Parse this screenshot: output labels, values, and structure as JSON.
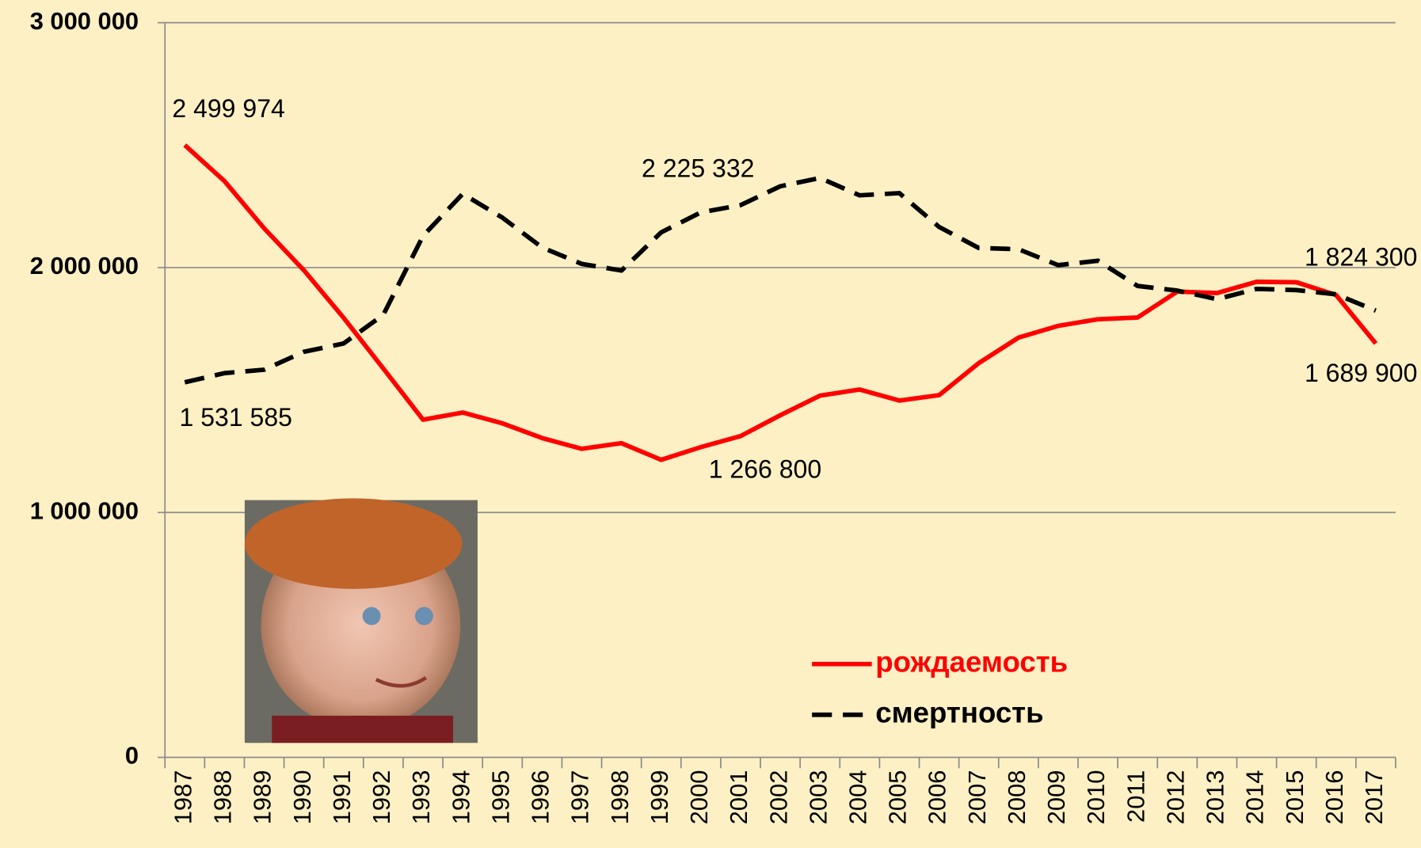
{
  "chart_data": {
    "type": "line",
    "categories": [
      "1987",
      "1988",
      "1989",
      "1990",
      "1991",
      "1992",
      "1993",
      "1994",
      "1995",
      "1996",
      "1997",
      "1998",
      "1999",
      "2000",
      "2001",
      "2002",
      "2003",
      "2004",
      "2005",
      "2006",
      "2007",
      "2008",
      "2009",
      "2010",
      "2011",
      "2012",
      "2013",
      "2014",
      "2015",
      "2016",
      "2017"
    ],
    "series": [
      {
        "name": "рождаемость",
        "color": "#ff0000",
        "dash": false,
        "values": [
          2499974,
          2353000,
          2160000,
          1989000,
          1795000,
          1588000,
          1379000,
          1408000,
          1364000,
          1304000,
          1260000,
          1283000,
          1215000,
          1267000,
          1312000,
          1397000,
          1477000,
          1502000,
          1457000,
          1479000,
          1610000,
          1714000,
          1762000,
          1789000,
          1796000,
          1902000,
          1896000,
          1942000,
          1940000,
          1888000,
          1689900
        ]
      },
      {
        "name": "смертность",
        "color": "#000000",
        "dash": true,
        "values": [
          1531585,
          1569000,
          1583000,
          1656000,
          1690000,
          1807000,
          2129000,
          2301000,
          2204000,
          2082000,
          2015000,
          1988000,
          2144000,
          2225332,
          2255000,
          2332000,
          2366000,
          2295000,
          2304000,
          2166000,
          2080000,
          2075000,
          2010000,
          2028000,
          1925000,
          1906000,
          1871000,
          1913000,
          1908000,
          1891000,
          1824300
        ]
      }
    ],
    "annotations": [
      "2 499 974",
      "1 531 585",
      "2 225 332",
      "1 266 800",
      "1 824 300",
      "1 689 900"
    ],
    "ylim": [
      0,
      3000000
    ],
    "yticks": [
      {
        "value": 0,
        "label": "0"
      },
      {
        "value": 1000000,
        "label": "1 000 000"
      },
      {
        "value": 2000000,
        "label": "2 000 000"
      },
      {
        "value": 3000000,
        "label": "3 000 000"
      }
    ],
    "grid": true,
    "legend": "bottom-right"
  }
}
